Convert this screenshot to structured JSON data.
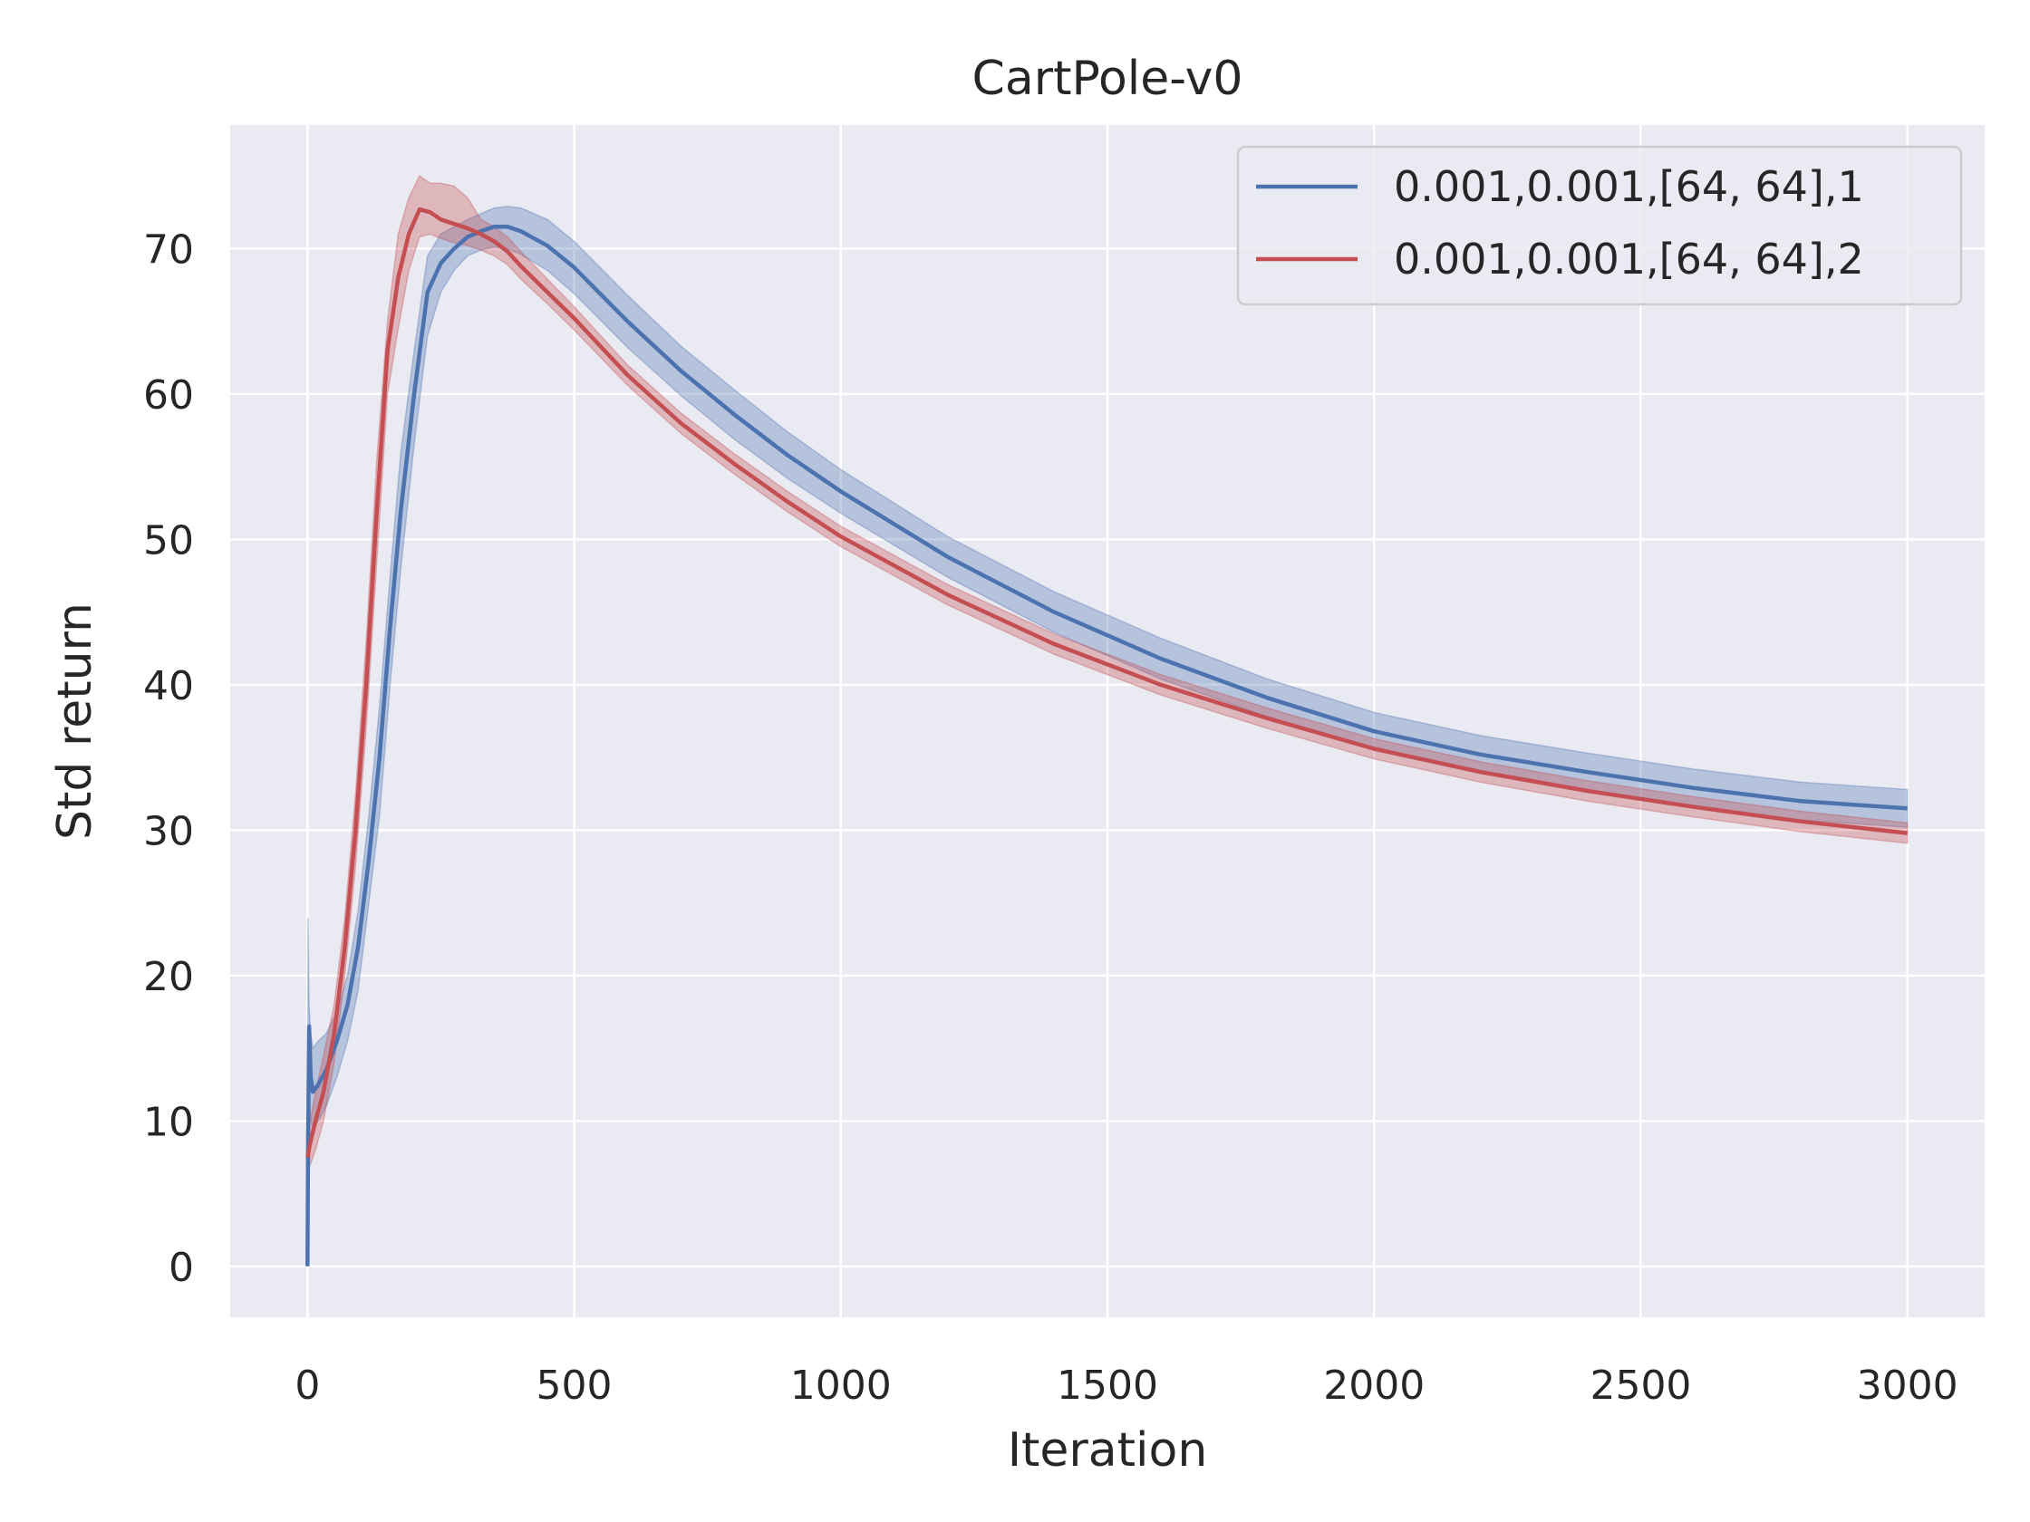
{
  "chart_data": {
    "type": "line",
    "title": "CartPole-v0",
    "xlabel": "Iteration",
    "ylabel": "Std return",
    "xlim": [
      -145,
      3145
    ],
    "ylim": [
      -3.5,
      78.5
    ],
    "xticks": [
      0,
      500,
      1000,
      1500,
      2000,
      2500,
      3000
    ],
    "yticks": [
      0,
      10,
      20,
      30,
      40,
      50,
      60,
      70
    ],
    "grid": true,
    "legend_position": "top-right",
    "background": "#eaeaf2",
    "series": [
      {
        "name": "0.001,0.001,[64, 64],1",
        "color": "#4c72b0",
        "x": [
          0,
          1,
          3,
          6,
          10,
          20,
          35,
          55,
          75,
          95,
          115,
          135,
          155,
          175,
          200,
          225,
          250,
          275,
          300,
          325,
          350,
          375,
          400,
          450,
          500,
          600,
          700,
          800,
          900,
          1000,
          1200,
          1400,
          1600,
          1800,
          2000,
          2200,
          2400,
          2600,
          2800,
          3000
        ],
        "y": [
          0,
          8,
          16.5,
          13,
          12,
          12.5,
          13.5,
          15.5,
          18,
          22,
          28,
          35,
          44,
          52,
          60,
          67,
          69,
          70,
          70.8,
          71.2,
          71.5,
          71.5,
          71.2,
          70.2,
          68.7,
          65,
          61.6,
          58.6,
          55.8,
          53.3,
          48.8,
          45,
          41.8,
          39.1,
          36.8,
          35.2,
          34,
          32.9,
          32,
          31.5
        ],
        "lower": [
          0,
          6,
          12,
          10,
          9.5,
          10,
          11,
          13,
          15.5,
          19,
          25,
          31,
          40,
          48,
          56.5,
          64,
          67,
          68.5,
          69.5,
          69.9,
          70.1,
          70,
          69.6,
          68.5,
          66.9,
          63.2,
          59.9,
          56.9,
          54.2,
          51.8,
          47.4,
          43.6,
          40.4,
          37.8,
          35.5,
          33.9,
          32.7,
          31.6,
          30.7,
          30.2
        ],
        "upper": [
          0,
          24,
          18,
          16,
          15,
          15.5,
          16,
          17.5,
          20,
          24.5,
          31,
          38.5,
          47.5,
          56,
          63,
          69.5,
          71,
          71.5,
          72,
          72.4,
          72.8,
          72.9,
          72.8,
          72,
          70.5,
          66.8,
          63.3,
          60.3,
          57.4,
          54.8,
          50.2,
          46.4,
          43.2,
          40.4,
          38.1,
          36.5,
          35.3,
          34.2,
          33.3,
          32.8
        ]
      },
      {
        "name": "0.001,0.001,[64, 64],2",
        "color": "#c44e52",
        "x": [
          0,
          5,
          15,
          30,
          50,
          70,
          90,
          110,
          130,
          150,
          170,
          190,
          210,
          230,
          250,
          275,
          300,
          325,
          350,
          375,
          400,
          450,
          500,
          600,
          700,
          800,
          900,
          1000,
          1200,
          1400,
          1600,
          1800,
          2000,
          2200,
          2400,
          2600,
          2800,
          3000
        ],
        "y": [
          7.5,
          8.5,
          10,
          12,
          16,
          22,
          30,
          40,
          52,
          63,
          68,
          71,
          72.7,
          72.5,
          72,
          71.7,
          71.4,
          71,
          70.5,
          69.8,
          68.8,
          67,
          65.2,
          61.3,
          58,
          55.2,
          52.6,
          50.2,
          46.2,
          42.8,
          40,
          37.7,
          35.6,
          34,
          32.7,
          31.6,
          30.6,
          29.8
        ],
        "lower": [
          6.5,
          7,
          8,
          10,
          14,
          20,
          27.5,
          37,
          48.5,
          60,
          64.5,
          68.5,
          70.8,
          71,
          70.7,
          70.4,
          70.2,
          69.9,
          69.5,
          68.9,
          67.9,
          66.2,
          64.4,
          60.6,
          57.3,
          54.5,
          51.9,
          49.5,
          45.5,
          42.1,
          39.3,
          37,
          34.9,
          33.3,
          32,
          30.9,
          29.9,
          29.1
        ],
        "upper": [
          9,
          10,
          12,
          14.5,
          18,
          24,
          32.5,
          43,
          55.5,
          65,
          71,
          73.5,
          75,
          74.5,
          74.5,
          74.3,
          73.5,
          72,
          71.5,
          70.8,
          69.8,
          67.9,
          66,
          62,
          58.7,
          55.9,
          53.3,
          50.9,
          46.9,
          43.5,
          40.7,
          38.4,
          36.3,
          34.7,
          33.4,
          32.3,
          31.3,
          30.5
        ]
      }
    ]
  }
}
